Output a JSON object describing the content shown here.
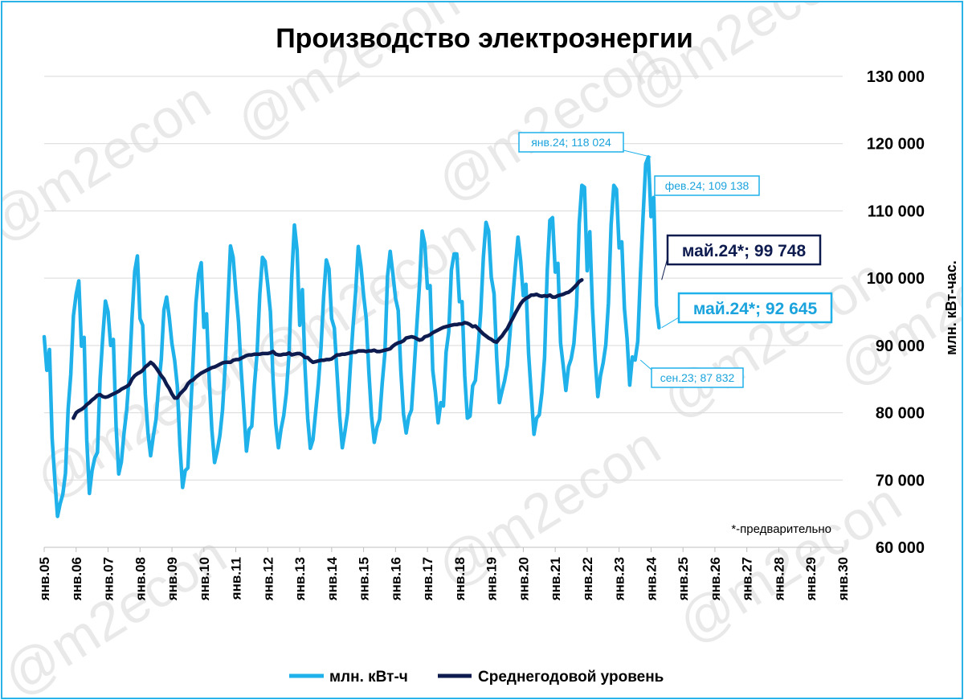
{
  "chart_data": {
    "type": "line",
    "title": "Производство электроэнергии",
    "ylabel": "млн. кВт-час.",
    "ylim": [
      60000,
      130000
    ],
    "y_ticks": [
      "60 000",
      "70 000",
      "80 000",
      "90 000",
      "100 000",
      "110 000",
      "120 000",
      "130 000"
    ],
    "x_ticks": [
      "янв.05",
      "янв.06",
      "янв.07",
      "янв.08",
      "янв.09",
      "янв.10",
      "янв.11",
      "янв.12",
      "янв.13",
      "янв.14",
      "янв.15",
      "янв.16",
      "янв.17",
      "янв.18",
      "янв.19",
      "янв.20",
      "янв.21",
      "янв.22",
      "янв.23",
      "янв.24",
      "янв.25",
      "янв.26",
      "янв.27",
      "янв.28",
      "янв.29",
      "янв.30"
    ],
    "x_start": "янв.05",
    "grid": true,
    "legend_position": "bottom",
    "note": "*-предварительно",
    "series": [
      {
        "name": "млн. кВт-ч",
        "color": "#1fb1ea",
        "values": [
          91300,
          86300,
          89400,
          76200,
          70000,
          64600,
          66500,
          67900,
          71000,
          80500,
          85700,
          94400,
          97600,
          99600,
          89900,
          91200,
          76000,
          68000,
          71400,
          73300,
          74100,
          85000,
          91200,
          96600,
          95000,
          90000,
          90900,
          78000,
          70900,
          72700,
          77000,
          80400,
          85800,
          94000,
          101000,
          103300,
          94000,
          93000,
          82700,
          77000,
          73600,
          76500,
          79000,
          84000,
          88000,
          95300,
          97200,
          94200,
          90300,
          87800,
          84000,
          75000,
          68900,
          71400,
          71800,
          80000,
          88000,
          96300,
          100600,
          102300,
          92700,
          94700,
          85000,
          77500,
          72600,
          74300,
          76600,
          80400,
          87000,
          96000,
          104800,
          103100,
          98000,
          93500,
          86400,
          80500,
          74300,
          77500,
          78000,
          84200,
          89000,
          97600,
          103100,
          102500,
          99000,
          95000,
          85000,
          78300,
          74800,
          77600,
          79600,
          83000,
          88800,
          100000,
          107900,
          104200,
          93000,
          98300,
          86700,
          79200,
          74700,
          76000,
          80200,
          84300,
          89700,
          97300,
          102700,
          101400,
          94000,
          92600,
          86000,
          79500,
          74800,
          77200,
          80000,
          86600,
          92600,
          97900,
          104700,
          101800,
          97500,
          94000,
          86000,
          79500,
          75600,
          77800,
          79000,
          84400,
          88800,
          100300,
          104000,
          100700,
          97000,
          95200,
          86200,
          79800,
          77000,
          79400,
          80400,
          86600,
          93000,
          99100,
          107000,
          105100,
          98500,
          98900,
          86300,
          82900,
          78500,
          81500,
          81000,
          89000,
          92000,
          101200,
          103600,
          103600,
          96500,
          96500,
          85500,
          79200,
          79500,
          84000,
          84800,
          89500,
          94900,
          103100,
          108300,
          107000,
          100100,
          97700,
          88200,
          81500,
          83200,
          84800,
          87000,
          91700,
          96800,
          101700,
          106100,
          102600,
          97400,
          99100,
          88800,
          82800,
          76800,
          79200,
          79700,
          83000,
          88200,
          101100,
          108600,
          109000,
          100900,
          102200,
          90400,
          87000,
          83300,
          86800,
          88000,
          90300,
          95800,
          108100,
          113800,
          113500,
          101100,
          106900,
          95600,
          87900,
          82400,
          85500,
          87400,
          90100,
          96300,
          107900,
          113800,
          113200,
          104500,
          105400,
          95500,
          91000,
          84100,
          88300,
          87832,
          90600,
          100500,
          109200,
          117000,
          118024,
          109138,
          112000,
          96000,
          92645
        ]
      },
      {
        "name": "Среднегодовой уровень",
        "color": "#0d1b4f",
        "start": "дек.05",
        "values": [
          79200,
          80000,
          80300,
          80500,
          80800,
          81200,
          81500,
          81900,
          82200,
          82600,
          82700,
          82400,
          82300,
          82400,
          82600,
          82800,
          83000,
          83200,
          83500,
          83700,
          83900,
          84200,
          85000,
          85500,
          85800,
          86000,
          86300,
          86800,
          87100,
          87500,
          87200,
          86700,
          86100,
          85500,
          85000,
          84200,
          83600,
          82800,
          82200,
          82200,
          82800,
          83200,
          83600,
          84300,
          84700,
          84900,
          85300,
          85600,
          85900,
          86100,
          86300,
          86500,
          86700,
          86800,
          87000,
          87200,
          87400,
          87500,
          87500,
          87500,
          87800,
          87900,
          87900,
          88100,
          88300,
          88500,
          88600,
          88600,
          88700,
          88700,
          88700,
          88800,
          88800,
          88800,
          88900,
          89100,
          88700,
          88600,
          88600,
          88700,
          88700,
          88900,
          88600,
          88700,
          88800,
          88800,
          88600,
          88200,
          88200,
          87800,
          87500,
          87600,
          87700,
          87800,
          87800,
          87900,
          87900,
          88000,
          88300,
          88600,
          88600,
          88700,
          88700,
          88800,
          88900,
          89000,
          89000,
          89200,
          89200,
          89200,
          89100,
          89200,
          89200,
          89300,
          89100,
          89100,
          89200,
          89300,
          89400,
          89500,
          89900,
          90200,
          90400,
          90500,
          90700,
          91100,
          91200,
          91300,
          91200,
          91000,
          90800,
          90900,
          91300,
          91400,
          91600,
          91900,
          92100,
          92300,
          92500,
          92700,
          92800,
          92900,
          93000,
          93100,
          93100,
          93200,
          93200,
          93400,
          93300,
          93100,
          92800,
          92900,
          92500,
          92100,
          91700,
          91400,
          91100,
          90900,
          90600,
          90500,
          91000,
          91400,
          92000,
          92500,
          93300,
          94000,
          94800,
          95500,
          96200,
          96700,
          97000,
          97200,
          97500,
          97500,
          97600,
          97400,
          97300,
          97400,
          97300,
          97500,
          97200,
          97200,
          97400,
          97500,
          97600,
          97800,
          97900,
          98200,
          98600,
          99000,
          99500,
          99748
        ]
      }
    ],
    "annotations": [
      {
        "text": "янв.24; 118 024"
      },
      {
        "text": "фев.24; 109 138"
      },
      {
        "text": "май.24*;  99 748"
      },
      {
        "text": "май.24*; 92 645"
      },
      {
        "text": "сен.23; 87 832"
      }
    ],
    "watermark": "@m2econ"
  }
}
